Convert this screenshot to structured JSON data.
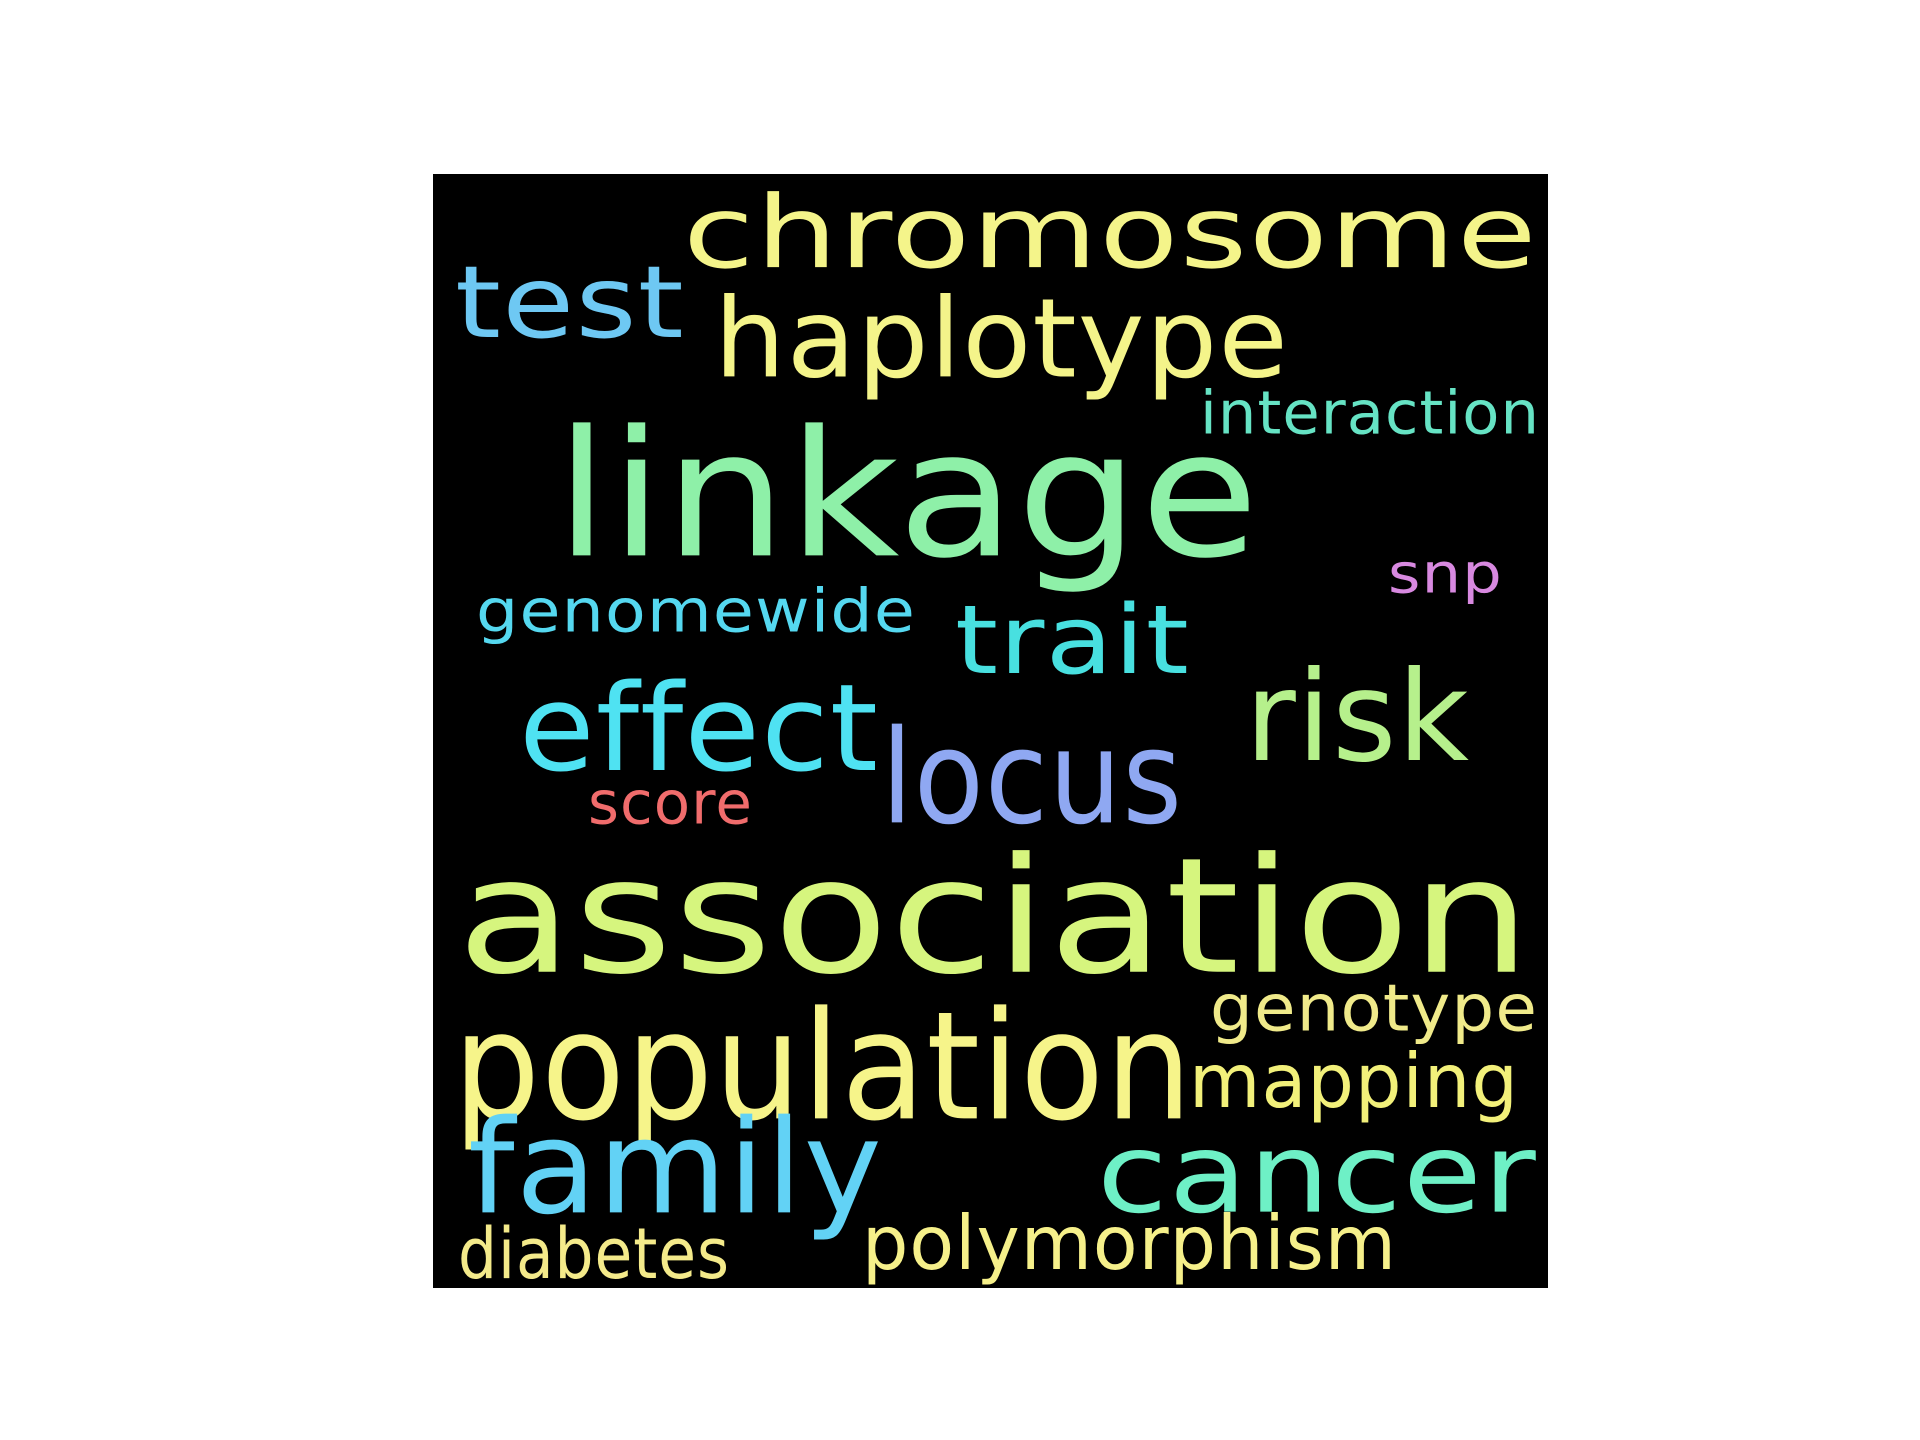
{
  "word_cloud": {
    "background": "#000000",
    "words": [
      {
        "text": "chromosome",
        "color": "#f4f48a"
      },
      {
        "text": "test",
        "color": "#6ec8f3"
      },
      {
        "text": "haplotype",
        "color": "#f4f48a"
      },
      {
        "text": "interaction",
        "color": "#66e3c4"
      },
      {
        "text": "linkage",
        "color": "#8ef0a8"
      },
      {
        "text": "snp",
        "color": "#d889e0"
      },
      {
        "text": "genomewide",
        "color": "#55d8f0"
      },
      {
        "text": "trait",
        "color": "#48e0e0"
      },
      {
        "text": "risk",
        "color": "#b6f08c"
      },
      {
        "text": "effect",
        "color": "#4fe2f2"
      },
      {
        "text": "locus",
        "color": "#8fa8f2"
      },
      {
        "text": "score",
        "color": "#f06c6c"
      },
      {
        "text": "association",
        "color": "#d6f57e"
      },
      {
        "text": "population",
        "color": "#f6f48a"
      },
      {
        "text": "genotype",
        "color": "#f0ea8a"
      },
      {
        "text": "mapping",
        "color": "#f2f07a"
      },
      {
        "text": "family",
        "color": "#62d2f5"
      },
      {
        "text": "cancer",
        "color": "#6ef0c6"
      },
      {
        "text": "diabetes",
        "color": "#f4ea8a"
      },
      {
        "text": "polymorphism",
        "color": "#f6f08a"
      }
    ]
  }
}
